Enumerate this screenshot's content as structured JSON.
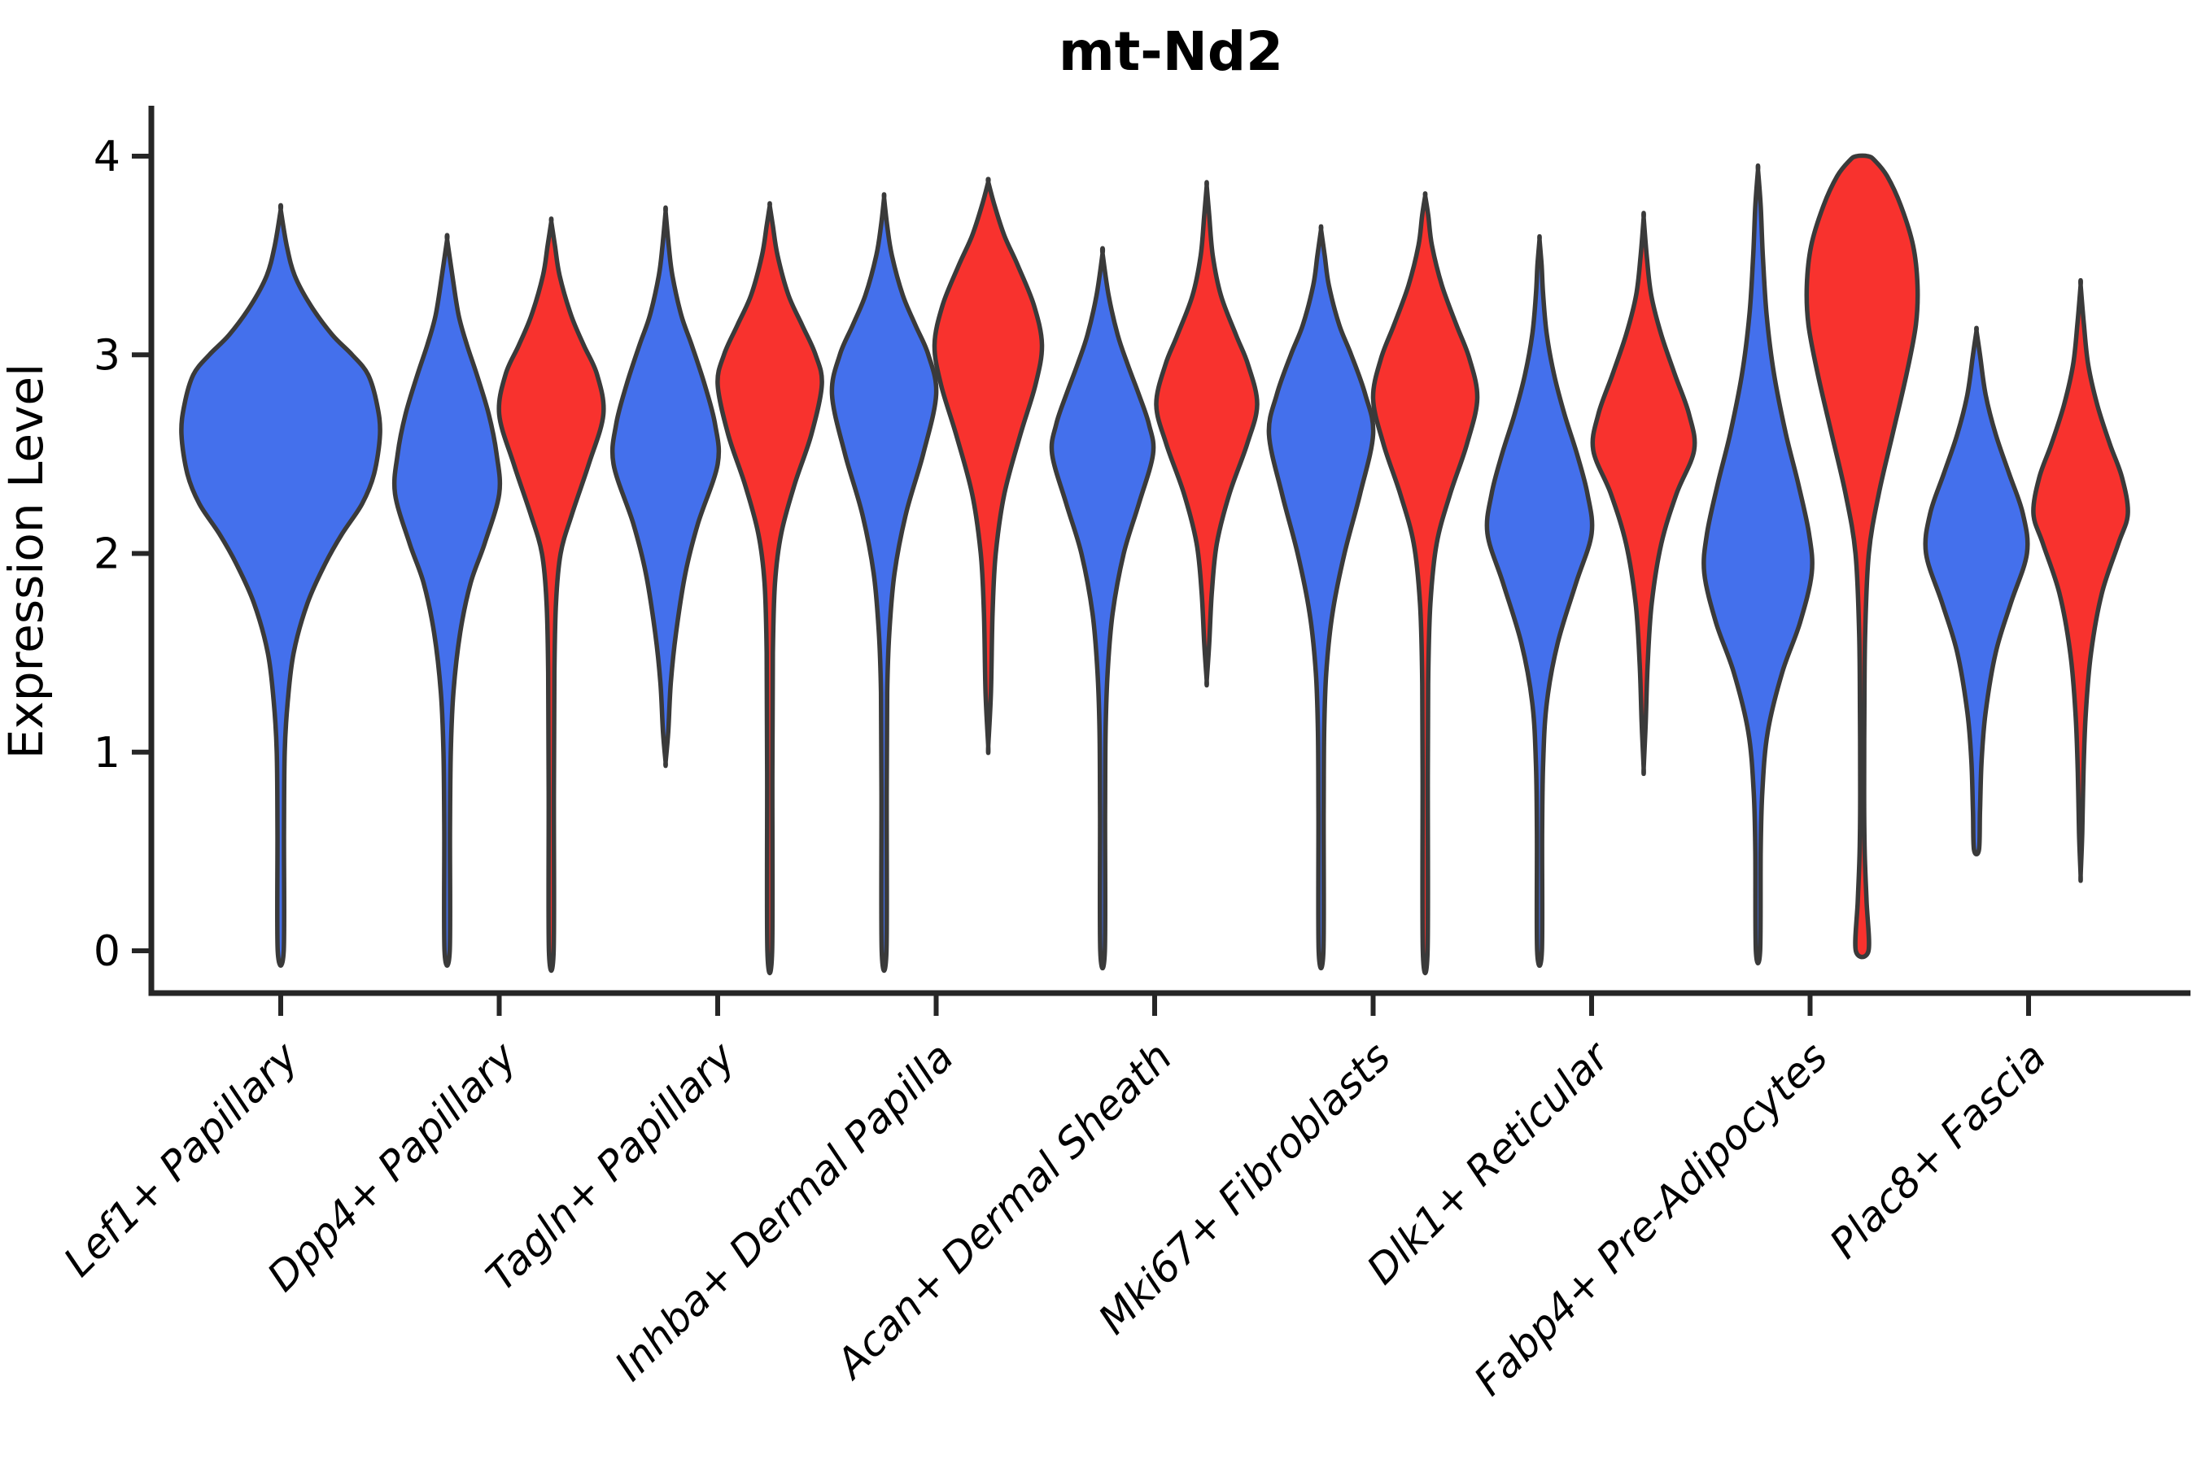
{
  "chart_data": {
    "type": "violin",
    "title": "mt-Nd2",
    "ylabel": "Expression Level",
    "xlabel": "",
    "ylim": [
      0,
      4
    ],
    "yticks": [
      0,
      1,
      2,
      3,
      4
    ],
    "grid": false,
    "legend": null,
    "categories": [
      "Lef1+ Papillary",
      "Dpp4+ Papillary",
      "Tagln+ Papillary",
      "Inhba+ Dermal Papilla",
      "Acan+ Dermal Sheath",
      "Mki67+ Fibroblasts",
      "Dlk1+ Reticular",
      "Fabp4+ Pre-Adipocytes",
      "Plac8+ Fascia"
    ],
    "colors": {
      "blue": "#4470EC",
      "red": "#F8322E",
      "outline": "#3A3A3A"
    },
    "violins": [
      {
        "category_index": 0,
        "category": "Lef1+ Papillary",
        "side": "center",
        "color": "blue",
        "max_halfwidth": 122,
        "profile": [
          [
            0,
            0.03
          ],
          [
            0.6,
            0.033
          ],
          [
            1.0,
            0.04
          ],
          [
            1.25,
            0.07
          ],
          [
            1.5,
            0.13
          ],
          [
            1.75,
            0.27
          ],
          [
            1.95,
            0.45
          ],
          [
            2.1,
            0.62
          ],
          [
            2.25,
            0.82
          ],
          [
            2.4,
            0.94
          ],
          [
            2.6,
            1.0
          ],
          [
            2.75,
            0.97
          ],
          [
            2.9,
            0.88
          ],
          [
            3.0,
            0.72
          ],
          [
            3.1,
            0.52
          ],
          [
            3.25,
            0.3
          ],
          [
            3.4,
            0.14
          ],
          [
            3.55,
            0.06
          ],
          [
            3.73,
            0
          ]
        ]
      },
      {
        "category_index": 1,
        "category": "Dpp4+ Papillary",
        "side": "left",
        "color": "blue",
        "max_halfwidth": 64,
        "profile": [
          [
            0,
            0.05
          ],
          [
            0.6,
            0.055
          ],
          [
            1.0,
            0.07
          ],
          [
            1.3,
            0.12
          ],
          [
            1.6,
            0.25
          ],
          [
            1.85,
            0.45
          ],
          [
            2.05,
            0.72
          ],
          [
            2.3,
            1.0
          ],
          [
            2.5,
            0.95
          ],
          [
            2.7,
            0.8
          ],
          [
            2.9,
            0.57
          ],
          [
            3.05,
            0.38
          ],
          [
            3.2,
            0.22
          ],
          [
            3.4,
            0.1
          ],
          [
            3.58,
            0
          ]
        ]
      },
      {
        "category_index": 1,
        "category": "Dpp4+ Papillary",
        "side": "right",
        "color": "red",
        "max_halfwidth": 64,
        "profile": [
          [
            0,
            0.045
          ],
          [
            0.8,
            0.05
          ],
          [
            1.4,
            0.06
          ],
          [
            1.75,
            0.09
          ],
          [
            2.0,
            0.18
          ],
          [
            2.2,
            0.4
          ],
          [
            2.45,
            0.72
          ],
          [
            2.7,
            1.0
          ],
          [
            2.9,
            0.88
          ],
          [
            3.05,
            0.62
          ],
          [
            3.2,
            0.38
          ],
          [
            3.4,
            0.16
          ],
          [
            3.55,
            0.07
          ],
          [
            3.67,
            0
          ]
        ]
      },
      {
        "category_index": 2,
        "category": "Tagln+ Papillary",
        "side": "left",
        "color": "blue",
        "max_halfwidth": 64,
        "profile": [
          [
            0.95,
            0
          ],
          [
            1.1,
            0.05
          ],
          [
            1.35,
            0.1
          ],
          [
            1.6,
            0.2
          ],
          [
            1.9,
            0.38
          ],
          [
            2.15,
            0.62
          ],
          [
            2.45,
            1.0
          ],
          [
            2.65,
            0.95
          ],
          [
            2.85,
            0.75
          ],
          [
            3.05,
            0.5
          ],
          [
            3.2,
            0.3
          ],
          [
            3.4,
            0.13
          ],
          [
            3.55,
            0.06
          ],
          [
            3.72,
            0
          ]
        ]
      },
      {
        "category_index": 2,
        "category": "Tagln+ Papillary",
        "side": "right",
        "color": "red",
        "max_halfwidth": 64,
        "profile": [
          [
            0,
            0.045
          ],
          [
            0.9,
            0.05
          ],
          [
            1.5,
            0.06
          ],
          [
            1.85,
            0.1
          ],
          [
            2.1,
            0.22
          ],
          [
            2.35,
            0.48
          ],
          [
            2.6,
            0.8
          ],
          [
            2.85,
            1.0
          ],
          [
            3.0,
            0.88
          ],
          [
            3.15,
            0.62
          ],
          [
            3.3,
            0.36
          ],
          [
            3.5,
            0.15
          ],
          [
            3.65,
            0.06
          ],
          [
            3.75,
            0
          ]
        ]
      },
      {
        "category_index": 3,
        "category": "Inhba+ Dermal Papilla",
        "side": "left",
        "color": "blue",
        "max_halfwidth": 64,
        "profile": [
          [
            0,
            0.045
          ],
          [
            0.8,
            0.05
          ],
          [
            1.3,
            0.06
          ],
          [
            1.6,
            0.1
          ],
          [
            1.9,
            0.2
          ],
          [
            2.2,
            0.42
          ],
          [
            2.5,
            0.75
          ],
          [
            2.8,
            1.0
          ],
          [
            3.0,
            0.85
          ],
          [
            3.15,
            0.6
          ],
          [
            3.3,
            0.36
          ],
          [
            3.5,
            0.15
          ],
          [
            3.65,
            0.06
          ],
          [
            3.79,
            0
          ]
        ]
      },
      {
        "category_index": 3,
        "category": "Inhba+ Dermal Papilla",
        "side": "right",
        "color": "red",
        "max_halfwidth": 66,
        "profile": [
          [
            1.03,
            0
          ],
          [
            1.3,
            0.05
          ],
          [
            1.7,
            0.08
          ],
          [
            2.0,
            0.14
          ],
          [
            2.3,
            0.3
          ],
          [
            2.6,
            0.6
          ],
          [
            2.85,
            0.88
          ],
          [
            3.05,
            1.0
          ],
          [
            3.25,
            0.85
          ],
          [
            3.45,
            0.55
          ],
          [
            3.6,
            0.3
          ],
          [
            3.75,
            0.12
          ],
          [
            3.87,
            0
          ]
        ]
      },
      {
        "category_index": 4,
        "category": "Acan+ Dermal Sheath",
        "side": "left",
        "color": "blue",
        "max_halfwidth": 62,
        "profile": [
          [
            0,
            0.045
          ],
          [
            0.7,
            0.05
          ],
          [
            1.1,
            0.06
          ],
          [
            1.4,
            0.1
          ],
          [
            1.7,
            0.2
          ],
          [
            2.0,
            0.42
          ],
          [
            2.25,
            0.72
          ],
          [
            2.5,
            1.0
          ],
          [
            2.65,
            0.92
          ],
          [
            2.8,
            0.72
          ],
          [
            2.95,
            0.5
          ],
          [
            3.1,
            0.3
          ],
          [
            3.3,
            0.12
          ],
          [
            3.51,
            0
          ]
        ]
      },
      {
        "category_index": 4,
        "category": "Acan+ Dermal Sheath",
        "side": "right",
        "color": "red",
        "max_halfwidth": 62,
        "profile": [
          [
            1.36,
            0
          ],
          [
            1.55,
            0.05
          ],
          [
            1.8,
            0.1
          ],
          [
            2.05,
            0.2
          ],
          [
            2.3,
            0.45
          ],
          [
            2.55,
            0.8
          ],
          [
            2.75,
            1.0
          ],
          [
            2.95,
            0.82
          ],
          [
            3.1,
            0.58
          ],
          [
            3.3,
            0.28
          ],
          [
            3.5,
            0.12
          ],
          [
            3.7,
            0.05
          ],
          [
            3.85,
            0
          ]
        ]
      },
      {
        "category_index": 5,
        "category": "Mki67+ Fibroblasts",
        "side": "left",
        "color": "blue",
        "max_halfwidth": 64,
        "profile": [
          [
            0,
            0.045
          ],
          [
            0.7,
            0.05
          ],
          [
            1.1,
            0.06
          ],
          [
            1.4,
            0.1
          ],
          [
            1.7,
            0.22
          ],
          [
            2.0,
            0.45
          ],
          [
            2.3,
            0.75
          ],
          [
            2.6,
            1.0
          ],
          [
            2.8,
            0.85
          ],
          [
            3.0,
            0.58
          ],
          [
            3.15,
            0.35
          ],
          [
            3.35,
            0.15
          ],
          [
            3.5,
            0.07
          ],
          [
            3.63,
            0
          ]
        ]
      },
      {
        "category_index": 5,
        "category": "Mki67+ Fibroblasts",
        "side": "right",
        "color": "red",
        "max_halfwidth": 64,
        "profile": [
          [
            0,
            0.045
          ],
          [
            0.9,
            0.05
          ],
          [
            1.4,
            0.06
          ],
          [
            1.75,
            0.1
          ],
          [
            2.05,
            0.22
          ],
          [
            2.3,
            0.48
          ],
          [
            2.55,
            0.8
          ],
          [
            2.78,
            1.0
          ],
          [
            2.98,
            0.85
          ],
          [
            3.15,
            0.6
          ],
          [
            3.35,
            0.32
          ],
          [
            3.55,
            0.13
          ],
          [
            3.7,
            0.06
          ],
          [
            3.8,
            0
          ]
        ]
      },
      {
        "category_index": 6,
        "category": "Dlk1+ Reticular",
        "side": "left",
        "color": "blue",
        "max_halfwidth": 64,
        "profile": [
          [
            0,
            0.045
          ],
          [
            0.6,
            0.05
          ],
          [
            0.95,
            0.07
          ],
          [
            1.25,
            0.14
          ],
          [
            1.55,
            0.35
          ],
          [
            1.85,
            0.7
          ],
          [
            2.1,
            1.0
          ],
          [
            2.3,
            0.92
          ],
          [
            2.5,
            0.72
          ],
          [
            2.7,
            0.48
          ],
          [
            2.9,
            0.28
          ],
          [
            3.1,
            0.14
          ],
          [
            3.3,
            0.07
          ],
          [
            3.45,
            0.04
          ],
          [
            3.58,
            0
          ]
        ]
      },
      {
        "category_index": 6,
        "category": "Dlk1+ Reticular",
        "side": "right",
        "color": "red",
        "max_halfwidth": 62,
        "profile": [
          [
            0.92,
            0
          ],
          [
            1.15,
            0.04
          ],
          [
            1.45,
            0.08
          ],
          [
            1.75,
            0.16
          ],
          [
            2.05,
            0.35
          ],
          [
            2.3,
            0.65
          ],
          [
            2.52,
            1.0
          ],
          [
            2.7,
            0.9
          ],
          [
            2.9,
            0.62
          ],
          [
            3.1,
            0.35
          ],
          [
            3.3,
            0.15
          ],
          [
            3.5,
            0.06
          ],
          [
            3.69,
            0
          ]
        ]
      },
      {
        "category_index": 7,
        "category": "Fabp4+ Pre-Adipocytes",
        "side": "left",
        "color": "blue",
        "max_halfwidth": 66,
        "profile": [
          [
            0,
            0.04
          ],
          [
            0.5,
            0.05
          ],
          [
            0.8,
            0.08
          ],
          [
            1.1,
            0.18
          ],
          [
            1.4,
            0.45
          ],
          [
            1.65,
            0.78
          ],
          [
            1.9,
            1.0
          ],
          [
            2.1,
            0.95
          ],
          [
            2.35,
            0.75
          ],
          [
            2.6,
            0.52
          ],
          [
            2.9,
            0.3
          ],
          [
            3.2,
            0.16
          ],
          [
            3.5,
            0.09
          ],
          [
            3.75,
            0.05
          ],
          [
            3.93,
            0
          ]
        ]
      },
      {
        "category_index": 7,
        "category": "Fabp4+ Pre-Adipocytes",
        "side": "right",
        "color": "red",
        "max_halfwidth": 68,
        "profile": [
          [
            0,
            0.115
          ],
          [
            0.25,
            0.08
          ],
          [
            0.5,
            0.045
          ],
          [
            0.8,
            0.035
          ],
          [
            1.2,
            0.04
          ],
          [
            1.6,
            0.055
          ],
          [
            2.0,
            0.12
          ],
          [
            2.3,
            0.3
          ],
          [
            2.6,
            0.55
          ],
          [
            2.9,
            0.8
          ],
          [
            3.15,
            0.97
          ],
          [
            3.35,
            1.0
          ],
          [
            3.55,
            0.92
          ],
          [
            3.75,
            0.7
          ],
          [
            3.9,
            0.45
          ],
          [
            3.98,
            0.22
          ],
          [
            4.0,
            0.1
          ]
        ]
      },
      {
        "category_index": 8,
        "category": "Plac8+ Fascia",
        "side": "left",
        "color": "blue",
        "max_halfwidth": 62,
        "profile": [
          [
            0.51,
            0.05
          ],
          [
            0.7,
            0.07
          ],
          [
            0.95,
            0.1
          ],
          [
            1.2,
            0.18
          ],
          [
            1.5,
            0.38
          ],
          [
            1.75,
            0.68
          ],
          [
            2.0,
            1.0
          ],
          [
            2.2,
            0.92
          ],
          [
            2.4,
            0.65
          ],
          [
            2.6,
            0.38
          ],
          [
            2.8,
            0.18
          ],
          [
            3.0,
            0.07
          ],
          [
            3.12,
            0
          ]
        ]
      },
      {
        "category_index": 8,
        "category": "Plac8+ Fascia",
        "side": "right",
        "color": "red",
        "max_halfwidth": 58,
        "profile": [
          [
            0.38,
            0
          ],
          [
            0.6,
            0.035
          ],
          [
            0.9,
            0.06
          ],
          [
            1.2,
            0.11
          ],
          [
            1.5,
            0.22
          ],
          [
            1.8,
            0.45
          ],
          [
            2.05,
            0.8
          ],
          [
            2.2,
            1.0
          ],
          [
            2.38,
            0.88
          ],
          [
            2.55,
            0.62
          ],
          [
            2.75,
            0.35
          ],
          [
            2.95,
            0.16
          ],
          [
            3.15,
            0.07
          ],
          [
            3.35,
            0
          ]
        ]
      }
    ]
  }
}
